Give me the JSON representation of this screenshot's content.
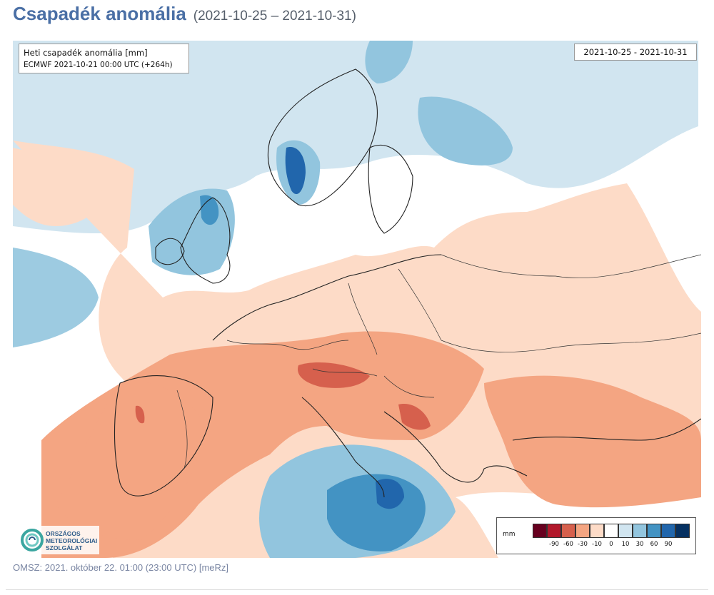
{
  "header": {
    "title": "Csapadék anomália",
    "date_range": "(2021-10-25 – 2021-10-31)"
  },
  "map": {
    "info_line1": "Heti csapadék anomália [mm]",
    "info_line2": "ECMWF 2021-10-21 00:00 UTC (+264h)",
    "date_box": "2021-10-25 - 2021-10-31",
    "logo_text": [
      "ORSZÁGOS",
      "METEOROLÓGIAI",
      "SZOLGÁLAT"
    ],
    "legend": {
      "unit": "mm",
      "colors": [
        "#67001f",
        "#b2182b",
        "#d6604d",
        "#f4a582",
        "#fddbc7",
        "#ffffff",
        "#d1e5f0",
        "#92c5de",
        "#4393c3",
        "#2166ac",
        "#053061"
      ],
      "tick_labels": [
        "-90",
        "-60",
        "-30",
        "-10",
        "0",
        "10",
        "30",
        "60",
        "90"
      ]
    }
  },
  "footer": {
    "text": "OMSZ: 2021. október 22. 01:00 (23:00  UTC)  [meRz]"
  }
}
